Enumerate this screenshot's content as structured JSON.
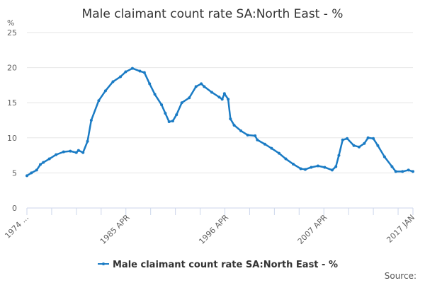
{
  "chart_data": {
    "type": "line",
    "title": "Male claimant count rate SA:North East - %",
    "ylabel": "%",
    "xlabel": "",
    "ylim": [
      0,
      25
    ],
    "yticks": [
      0,
      5,
      10,
      15,
      20,
      25
    ],
    "xlim": [
      "1974-01",
      "2017-01"
    ],
    "xtick_labels": [
      "1974 ...",
      "1985 APR",
      "1996 APR",
      "2007 APR",
      "2017 JAN"
    ],
    "xtick_dates": [
      "1974-01",
      "1985-04",
      "1996-04",
      "2007-04",
      "2017-01"
    ],
    "grid": "horizontal",
    "legend_position": "bottom",
    "series": [
      {
        "name": "Male claimant count rate SA:North East - %",
        "color": "#1a7bc4",
        "x": [
          "1974-01",
          "1974-07",
          "1975-02",
          "1975-07",
          "1975-11",
          "1976-07",
          "1977-04",
          "1978-02",
          "1978-11",
          "1979-07",
          "1979-10",
          "1980-04",
          "1980-10",
          "1981-03",
          "1982-01",
          "1982-10",
          "1983-08",
          "1984-06",
          "1985-01",
          "1985-10",
          "1986-08",
          "1987-02",
          "1987-09",
          "1988-04",
          "1989-01",
          "1989-06",
          "1989-11",
          "1990-04",
          "1990-09",
          "1991-04",
          "1992-02",
          "1992-11",
          "1993-06",
          "1993-10",
          "1994-08",
          "1995-06",
          "1995-10",
          "1996-01",
          "1996-06",
          "1996-09",
          "1997-02",
          "1997-11",
          "1998-08",
          "1999-06",
          "1999-09",
          "2000-07",
          "2001-04",
          "2002-02",
          "2002-11",
          "2003-09",
          "2004-07",
          "2005-01",
          "2005-09",
          "2006-06",
          "2007-03",
          "2008-01",
          "2008-06",
          "2008-10",
          "2009-03",
          "2009-09",
          "2010-06",
          "2011-01",
          "2011-08",
          "2012-01",
          "2012-08",
          "2013-02",
          "2013-11",
          "2014-09",
          "2015-02",
          "2015-11",
          "2016-07",
          "2017-01"
        ],
        "values": [
          4.6,
          5.0,
          5.4,
          6.2,
          6.5,
          7.0,
          7.6,
          8.0,
          8.1,
          7.9,
          8.2,
          7.9,
          9.5,
          12.5,
          15.3,
          16.7,
          18.0,
          18.7,
          19.4,
          19.9,
          19.5,
          19.3,
          17.7,
          16.2,
          14.7,
          13.5,
          12.3,
          12.4,
          13.3,
          15.0,
          15.7,
          17.3,
          17.7,
          17.3,
          16.5,
          15.8,
          15.5,
          16.3,
          15.5,
          12.7,
          11.8,
          11.0,
          10.4,
          10.3,
          9.7,
          9.1,
          8.5,
          7.8,
          7.0,
          6.25,
          5.6,
          5.5,
          5.8,
          6.0,
          5.8,
          5.4,
          5.9,
          7.5,
          9.7,
          9.9,
          8.9,
          8.7,
          9.2,
          10.0,
          9.9,
          8.9,
          7.3,
          5.9,
          5.2,
          5.2,
          5.4,
          5.2
        ]
      }
    ]
  },
  "source_label": "Source:"
}
